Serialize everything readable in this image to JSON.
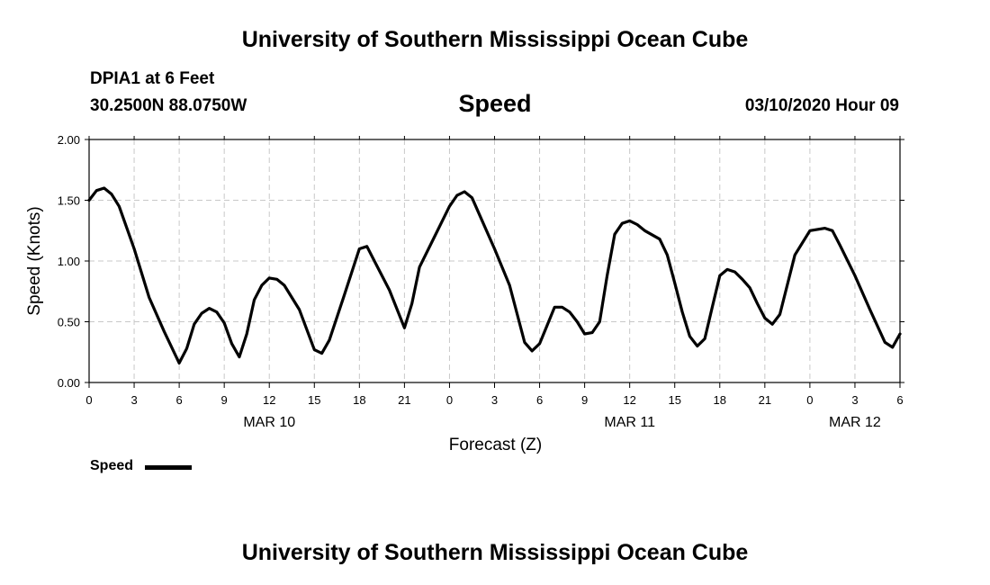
{
  "header": {
    "title_top": "University of Southern Mississippi Ocean Cube",
    "title_bottom": "University of Southern Mississippi Ocean Cube",
    "station": "DPIA1 at 6 Feet",
    "coords": "30.2500N 88.0750W",
    "plot_title": "Speed",
    "datetime": "03/10/2020 Hour 09"
  },
  "legend": {
    "label": "Speed"
  },
  "chart_data": {
    "type": "line",
    "title": "Speed",
    "xlabel": "Forecast (Z)",
    "ylabel": "Speed (Knots)",
    "xlim": [
      0,
      54
    ],
    "ylim": [
      0,
      2.0
    ],
    "y_ticks": [
      "0.00",
      "0.50",
      "1.00",
      "1.50",
      "2.00"
    ],
    "x_tick_labels": [
      "0",
      "3",
      "6",
      "9",
      "12",
      "15",
      "18",
      "21",
      "0",
      "3",
      "6",
      "9",
      "12",
      "15",
      "18",
      "21",
      "0",
      "3",
      "6"
    ],
    "date_labels": [
      {
        "label": "MAR 10",
        "x": 12
      },
      {
        "label": "MAR 11",
        "x": 36
      },
      {
        "label": "MAR 12",
        "x": 51
      }
    ],
    "grid": true,
    "legend_position": "bottom-left",
    "series": [
      {
        "name": "Speed",
        "color": "#000000",
        "x": [
          0,
          0.5,
          1,
          1.5,
          2,
          3,
          4,
          5,
          6,
          6.5,
          7,
          7.5,
          8,
          8.5,
          9,
          9.5,
          10,
          10.5,
          11,
          11.5,
          12,
          12.5,
          13,
          14,
          15,
          15.5,
          16,
          17,
          18,
          18.5,
          19,
          20,
          21,
          21.5,
          22,
          23,
          24,
          24.5,
          25,
          25.5,
          26,
          27,
          28,
          29,
          29.5,
          30,
          30.5,
          31,
          31.5,
          32,
          32.5,
          33,
          33.5,
          34,
          34.5,
          35,
          35.5,
          36,
          36.5,
          37,
          38,
          38.5,
          39,
          39.5,
          40,
          40.5,
          41,
          41.5,
          42,
          42.5,
          43,
          43.5,
          44,
          44.5,
          45,
          45.5,
          46,
          47,
          48,
          49,
          49.5,
          50,
          51,
          52,
          53,
          53.5,
          54
        ],
        "values": [
          1.5,
          1.58,
          1.6,
          1.55,
          1.45,
          1.1,
          0.7,
          0.42,
          0.16,
          0.28,
          0.48,
          0.57,
          0.61,
          0.58,
          0.49,
          0.32,
          0.21,
          0.4,
          0.68,
          0.8,
          0.86,
          0.85,
          0.8,
          0.6,
          0.27,
          0.24,
          0.35,
          0.72,
          1.1,
          1.12,
          1.0,
          0.76,
          0.45,
          0.65,
          0.95,
          1.2,
          1.45,
          1.54,
          1.57,
          1.52,
          1.38,
          1.1,
          0.8,
          0.33,
          0.26,
          0.32,
          0.47,
          0.62,
          0.62,
          0.58,
          0.5,
          0.4,
          0.41,
          0.5,
          0.88,
          1.22,
          1.31,
          1.33,
          1.3,
          1.25,
          1.18,
          1.05,
          0.82,
          0.58,
          0.38,
          0.3,
          0.36,
          0.62,
          0.88,
          0.93,
          0.91,
          0.85,
          0.78,
          0.65,
          0.53,
          0.48,
          0.56,
          1.05,
          1.25,
          1.27,
          1.25,
          1.13,
          0.88,
          0.6,
          0.33,
          0.29,
          0.4
        ]
      }
    ]
  }
}
